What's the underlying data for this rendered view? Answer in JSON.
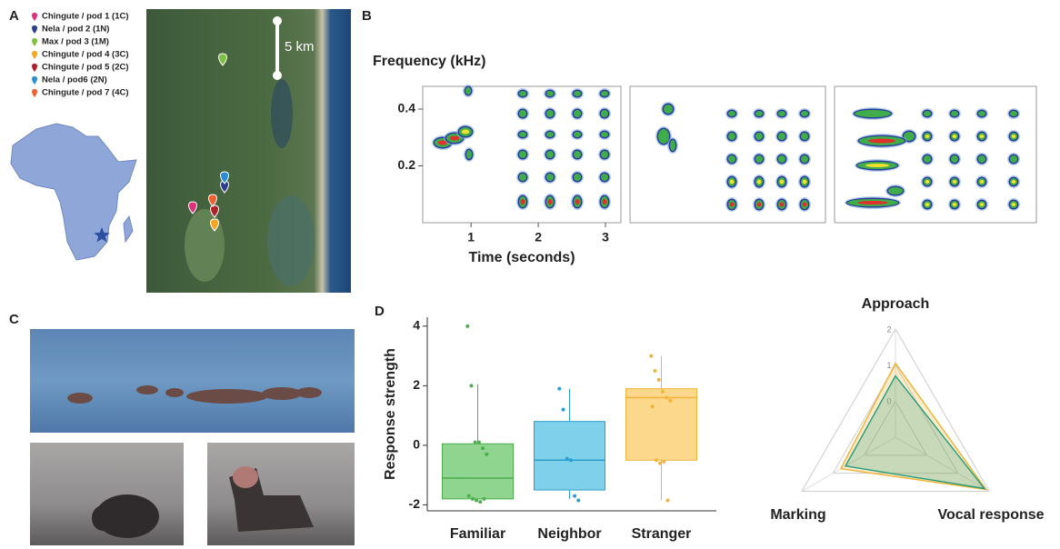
{
  "panel_labels": [
    "A",
    "B",
    "C",
    "D"
  ],
  "map": {
    "legend": [
      {
        "label": "Chingute / pod 1 (1C)",
        "color": "#e0307a"
      },
      {
        "label": "Nela / pod 2 (1N)",
        "color": "#2c3e8c"
      },
      {
        "label": "Max / pod 3 (1M)",
        "color": "#7dc142"
      },
      {
        "label": "Chingute / pod 4 (3C)",
        "color": "#f5a623"
      },
      {
        "label": "Chingute / pod 5 (2C)",
        "color": "#b0202a"
      },
      {
        "label": "Nela / pod6 (2N)",
        "color": "#2a8fd6"
      },
      {
        "label": "Chingute / pod 7 (4C)",
        "color": "#f06030"
      }
    ],
    "scale_label": "5 km"
  },
  "chart_data": [
    {
      "type": "spectrogram",
      "title": "Frequency (kHz)",
      "x_label": "Time (seconds)",
      "xlim": [
        0.28,
        3.23
      ],
      "ylim": [
        0,
        0.48
      ],
      "xticks": [
        1,
        2,
        3
      ],
      "yticks": [
        0.2,
        0.4
      ]
    },
    {
      "type": "box",
      "y_label": "Response strength",
      "categories": [
        "Familiar",
        "Neighbor",
        "Stranger"
      ],
      "colors": [
        "#4cae4c",
        "#2a9fd0",
        "#f0b43c"
      ],
      "fill_colors": [
        "#8fd48f",
        "#7fd0ea",
        "#fbd88c"
      ],
      "boxes": [
        {
          "min": -1.9,
          "q1": -1.8,
          "median": -1.1,
          "q3": 0.05,
          "max": 2.05
        },
        {
          "min": -1.8,
          "q1": -1.5,
          "median": -0.5,
          "q3": 0.8,
          "max": 1.9
        },
        {
          "min": -1.85,
          "q1": -0.5,
          "median": 1.6,
          "q3": 1.9,
          "max": 3.0
        }
      ],
      "points": [
        [
          4.0,
          2.0,
          0.1,
          0.1,
          -0.1,
          -0.3,
          -1.7,
          -1.8,
          -1.85,
          -1.9,
          -1.8
        ],
        [
          1.9,
          1.2,
          -0.45,
          -0.5,
          -1.7,
          -1.85
        ],
        [
          3.0,
          2.5,
          2.2,
          1.8,
          1.6,
          1.5,
          1.3,
          -0.5,
          -0.6,
          -0.55,
          -1.85
        ]
      ],
      "ylim": [
        -2.2,
        4.3
      ],
      "yticks": [
        -2,
        0,
        2,
        4
      ]
    },
    {
      "type": "radar",
      "categories": [
        "Approach",
        "Vocal response",
        "Marking"
      ],
      "rlim": [
        -1,
        2
      ],
      "rticks": [
        0,
        1,
        2
      ],
      "series": [
        {
          "color": "#f0b43c",
          "values": [
            1.05,
            1.9,
            0.75
          ]
        },
        {
          "color": "#2e9e7a",
          "values": [
            0.7,
            1.85,
            0.6
          ]
        }
      ]
    }
  ]
}
